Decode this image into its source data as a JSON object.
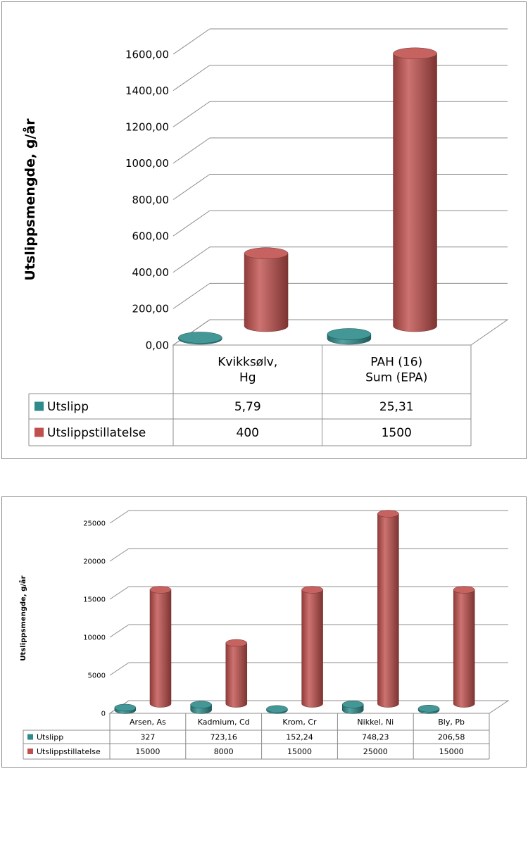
{
  "chart_data": [
    {
      "type": "bar",
      "style": "3d-cylinder",
      "title": "",
      "xlabel": "",
      "ylabel": "Utslippsmengde, g/år",
      "ylim": [
        0,
        1600
      ],
      "yticks": [
        "0,00",
        "200,00",
        "400,00",
        "600,00",
        "800,00",
        "1000,00",
        "1200,00",
        "1400,00",
        "1600,00"
      ],
      "grid": true,
      "legend": "data-table",
      "categories": [
        [
          "Kvikksølv,",
          "Hg"
        ],
        [
          "PAH (16)",
          "Sum (EPA)"
        ]
      ],
      "series": [
        {
          "name": "Utslipp",
          "color": "#2E8B8B",
          "values": [
            5.79,
            25.31
          ],
          "labels": [
            "5,79",
            "25,31"
          ]
        },
        {
          "name": "Utslippstillatelse",
          "color": "#C0504D",
          "values": [
            400,
            1500
          ],
          "labels": [
            "400",
            "1500"
          ]
        }
      ]
    },
    {
      "type": "bar",
      "style": "3d-cylinder",
      "title": "",
      "xlabel": "",
      "ylabel": "Utslippsmengde, g/år",
      "ylim": [
        0,
        25000
      ],
      "yticks": [
        "0",
        "5000",
        "10000",
        "15000",
        "20000",
        "25000"
      ],
      "grid": true,
      "legend": "data-table",
      "categories": [
        [
          "Arsen, As"
        ],
        [
          "Kadmium, Cd"
        ],
        [
          "Krom, Cr"
        ],
        [
          "Nikkel, Ni"
        ],
        [
          "Bly, Pb"
        ]
      ],
      "series": [
        {
          "name": "Utslipp",
          "color": "#2E8B8B",
          "values": [
            327,
            723.16,
            152.24,
            748.23,
            206.58
          ],
          "labels": [
            "327",
            "723,16",
            "152,24",
            "748,23",
            "206,58"
          ]
        },
        {
          "name": "Utslippstillatelse",
          "color": "#C0504D",
          "values": [
            15000,
            8000,
            15000,
            25000,
            15000
          ],
          "labels": [
            "15000",
            "8000",
            "15000",
            "25000",
            "15000"
          ]
        }
      ]
    }
  ]
}
